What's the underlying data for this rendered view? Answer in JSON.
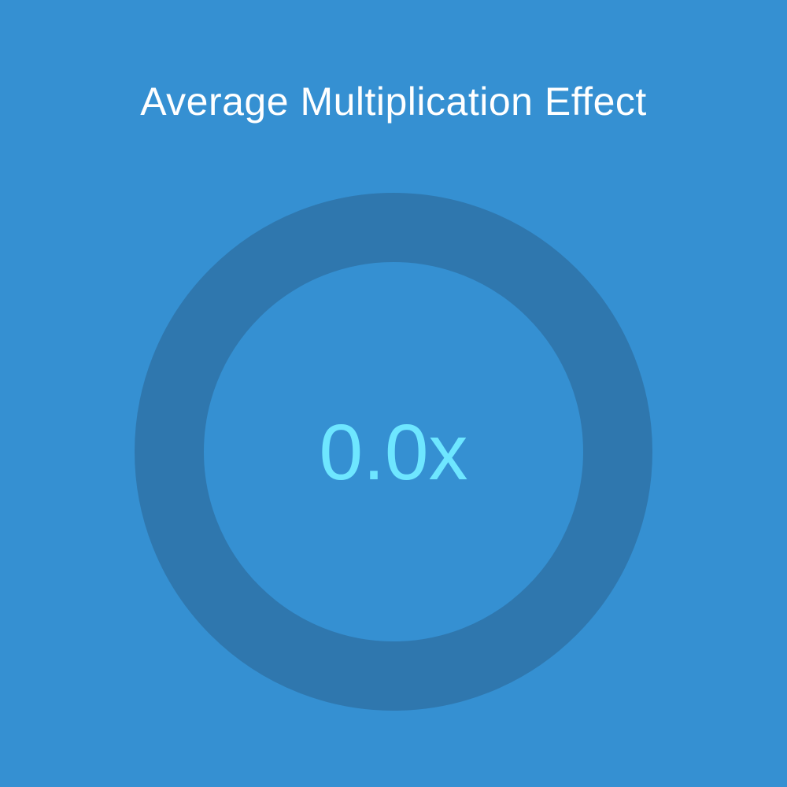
{
  "colors": {
    "background": "#3590d2",
    "track": "#2f77ae",
    "progress": "#6ee6ff",
    "value_text": "#6ee6ff",
    "title_text": "#ffffff"
  },
  "chart_data": {
    "type": "pie",
    "title": "Average Multiplication Effect",
    "value": 0.0,
    "value_label": "0.0x",
    "max": 1
  }
}
